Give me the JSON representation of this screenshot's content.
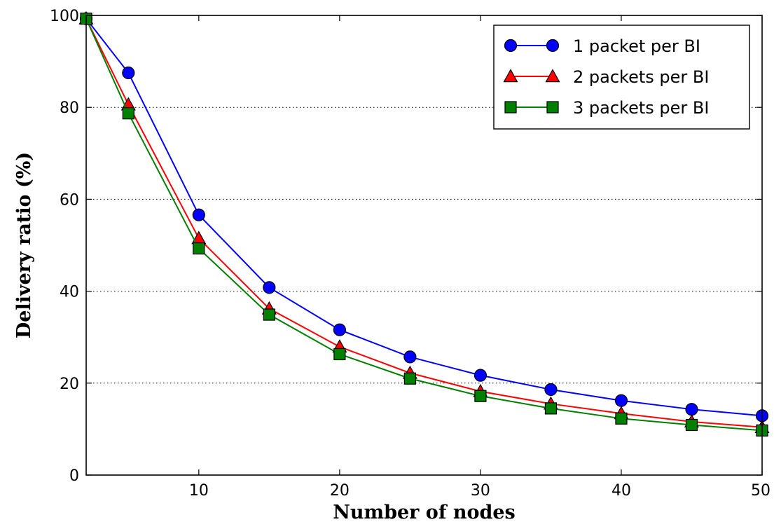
{
  "chart_data": {
    "type": "line",
    "title": "",
    "xlabel": "Number of nodes",
    "ylabel": "Delivery ratio (%)",
    "xlim": [
      2,
      50
    ],
    "ylim": [
      0,
      100
    ],
    "x_ticks": [
      10,
      20,
      30,
      40,
      50
    ],
    "y_ticks": [
      0,
      20,
      40,
      60,
      80,
      100
    ],
    "grid": "horizontal dotted",
    "legend_position": "top-right",
    "x": [
      2,
      5,
      10,
      15,
      20,
      25,
      30,
      35,
      40,
      45,
      50
    ],
    "series": [
      {
        "name": "1 packet per BI",
        "color": "#0000ff",
        "marker": "circle",
        "values": [
          99.3,
          87.5,
          56.6,
          40.8,
          31.6,
          25.7,
          21.7,
          18.6,
          16.2,
          14.3,
          12.9
        ]
      },
      {
        "name": "2 packets per BI",
        "color": "#ff0000",
        "marker": "triangle",
        "values": [
          99.3,
          80.6,
          51.5,
          36.2,
          27.9,
          22.2,
          18.2,
          15.5,
          13.4,
          11.6,
          10.4
        ]
      },
      {
        "name": "3 packets per BI",
        "color": "#008000",
        "marker": "square",
        "values": [
          99.3,
          78.7,
          49.3,
          34.9,
          26.3,
          21.0,
          17.2,
          14.5,
          12.3,
          10.9,
          9.7
        ]
      }
    ]
  }
}
